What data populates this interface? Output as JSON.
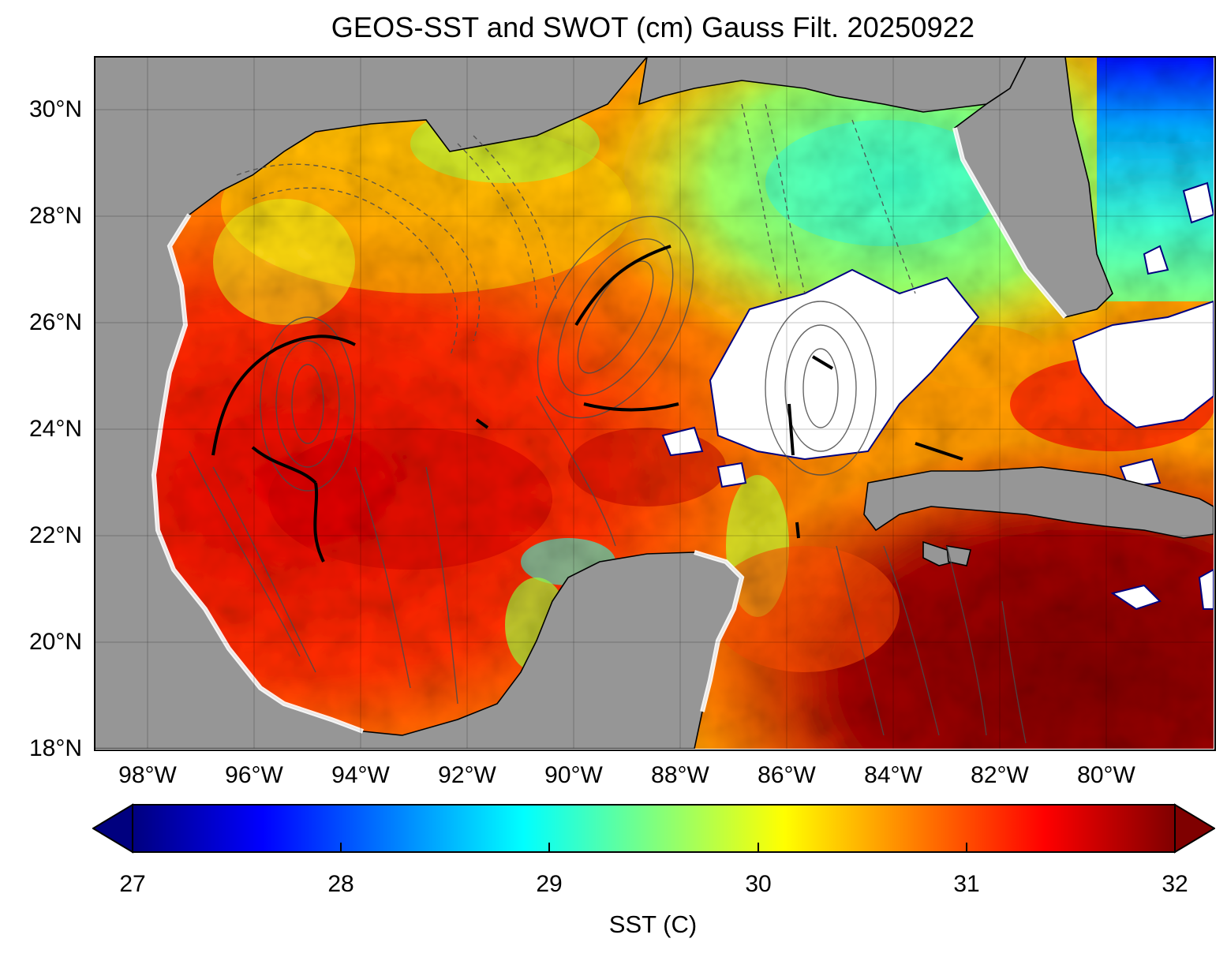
{
  "title": "GEOS-SST  and SWOT (cm) Gauss Filt. 20250922",
  "map": {
    "lat_labels": [
      "30°N",
      "28°N",
      "26°N",
      "24°N",
      "22°N",
      "20°N",
      "18°N"
    ],
    "lon_labels": [
      "98°W",
      "96°W",
      "94°W",
      "92°W",
      "90°W",
      "88°W",
      "86°W",
      "84°W",
      "82°W",
      "80°W"
    ],
    "lat_range": [
      18,
      31
    ],
    "lon_range": [
      -99,
      -78
    ],
    "land_color": "#969696",
    "cloud_color": "#ffffff"
  },
  "colorbar": {
    "label": "SST (C)",
    "ticks": [
      "27",
      "28",
      "29",
      "30",
      "31",
      "32"
    ],
    "range": [
      27,
      32
    ],
    "colormap": "jet",
    "colors": [
      "#00007f",
      "#0000ff",
      "#007fff",
      "#00ffff",
      "#7fff7f",
      "#ffff00",
      "#ff7f00",
      "#ff0000",
      "#7f0000"
    ],
    "extend": "both"
  }
}
